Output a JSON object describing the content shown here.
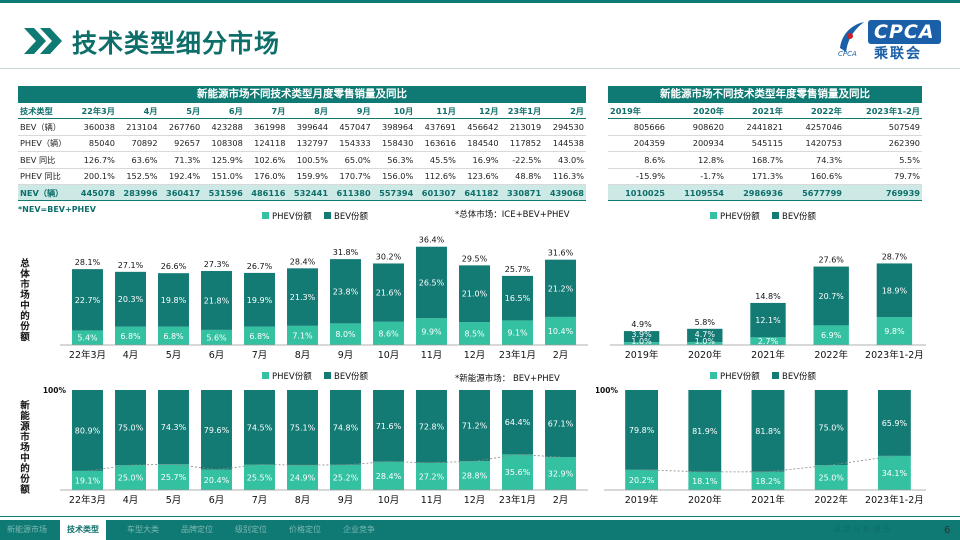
{
  "title": "技术类型细分市场",
  "logo": {
    "text": "CPCA",
    "cn": "乘联会",
    "sub": "CPCA"
  },
  "monthly_table": {
    "title": "新能源市场不同技术类型月度零售销量及同比",
    "header": [
      "技术类型",
      "22年3月",
      "4月",
      "5月",
      "6月",
      "7月",
      "8月",
      "9月",
      "10月",
      "11月",
      "12月",
      "23年1月",
      "2月"
    ],
    "rows": [
      [
        "BEV（辆）",
        "360038",
        "213104",
        "267760",
        "423288",
        "361998",
        "399644",
        "457047",
        "398964",
        "437691",
        "456642",
        "213019",
        "294530"
      ],
      [
        "PHEV（辆）",
        "85040",
        "70892",
        "92657",
        "108308",
        "124118",
        "132797",
        "154333",
        "158430",
        "163616",
        "184540",
        "117852",
        "144538"
      ],
      [
        "BEV 同比",
        "126.7%",
        "63.6%",
        "71.3%",
        "125.9%",
        "102.6%",
        "100.5%",
        "65.0%",
        "56.3%",
        "45.5%",
        "16.9%",
        "-22.5%",
        "43.0%"
      ],
      [
        "PHEV 同比",
        "200.1%",
        "152.5%",
        "192.4%",
        "151.0%",
        "176.0%",
        "159.9%",
        "170.7%",
        "156.0%",
        "112.6%",
        "123.6%",
        "48.8%",
        "116.3%"
      ]
    ],
    "nev_row": [
      "NEV（辆）",
      "445078",
      "283996",
      "360417",
      "531596",
      "486116",
      "532441",
      "611380",
      "557394",
      "601307",
      "641182",
      "330871",
      "439068"
    ]
  },
  "annual_table": {
    "title": "新能源市场不同技术类型年度零售销量及同比",
    "header": [
      "2019年",
      "2020年",
      "2021年",
      "2022年",
      "2023年1-2月"
    ],
    "rows": [
      [
        "805666",
        "908620",
        "2441821",
        "4257046",
        "507549"
      ],
      [
        "204359",
        "200934",
        "545115",
        "1420753",
        "262390"
      ],
      [
        "8.6%",
        "12.8%",
        "168.7%",
        "74.3%",
        "5.5%"
      ],
      [
        "-15.9%",
        "-1.7%",
        "171.3%",
        "160.6%",
        "79.7%"
      ]
    ],
    "nev_row": [
      "1010025",
      "1109554",
      "2986936",
      "5677799",
      "769939"
    ]
  },
  "note": "*NEV=BEV+PHEV",
  "labels": {
    "total_share": "总体市场中的份额",
    "nev_share": "新能源市场中的份额",
    "total_note": "*总体市场：ICE+BEV+PHEV",
    "nev_note": "*新能源市场： BEV+PHEV",
    "hundred": "100%"
  },
  "colors": {
    "phev": "#34c1a2",
    "bev": "#137a74",
    "header": "#0e7a73"
  },
  "chart_data": [
    {
      "type": "bar",
      "id": "monthly_total",
      "stacked": true,
      "categories": [
        "22年3月",
        "4月",
        "5月",
        "6月",
        "7月",
        "8月",
        "9月",
        "10月",
        "11月",
        "12月",
        "23年1月",
        "2月"
      ],
      "series": [
        {
          "name": "PHEV份额",
          "values": [
            5.4,
            6.8,
            6.8,
            5.6,
            6.8,
            7.1,
            8.0,
            8.6,
            9.9,
            8.5,
            9.1,
            10.4
          ]
        },
        {
          "name": "BEV份额",
          "values": [
            22.7,
            20.3,
            19.8,
            21.8,
            19.9,
            21.3,
            23.8,
            21.6,
            26.5,
            21.0,
            16.5,
            21.2
          ]
        }
      ],
      "totals": [
        28.1,
        27.1,
        26.6,
        27.3,
        26.7,
        28.4,
        31.8,
        30.2,
        36.4,
        29.5,
        25.7,
        31.6
      ],
      "legend": "top"
    },
    {
      "type": "bar",
      "id": "annual_total",
      "stacked": true,
      "categories": [
        "2019年",
        "2020年",
        "2021年",
        "2022年",
        "2023年1-2月"
      ],
      "series": [
        {
          "name": "PHEV份额",
          "values": [
            1.0,
            1.0,
            2.7,
            6.9,
            9.8
          ]
        },
        {
          "name": "BEV份额",
          "values": [
            3.9,
            4.7,
            12.1,
            20.7,
            18.9
          ]
        }
      ],
      "totals": [
        4.9,
        5.8,
        14.8,
        27.6,
        28.7
      ],
      "legend": "top"
    },
    {
      "type": "bar",
      "id": "monthly_nev",
      "stacked": true,
      "categories": [
        "22年3月",
        "4月",
        "5月",
        "6月",
        "7月",
        "8月",
        "9月",
        "10月",
        "11月",
        "12月",
        "23年1月",
        "2月"
      ],
      "series": [
        {
          "name": "PHEV份额",
          "values": [
            19.1,
            25.0,
            25.7,
            20.4,
            25.5,
            24.9,
            25.2,
            28.4,
            27.2,
            28.8,
            35.6,
            32.9
          ]
        },
        {
          "name": "BEV份额",
          "values": [
            80.9,
            75.0,
            74.3,
            79.6,
            74.5,
            75.1,
            74.8,
            71.6,
            72.8,
            71.2,
            64.4,
            67.1
          ]
        }
      ],
      "legend": "top"
    },
    {
      "type": "bar",
      "id": "annual_nev",
      "stacked": true,
      "categories": [
        "2019年",
        "2020年",
        "2021年",
        "2022年",
        "2023年1-2月"
      ],
      "series": [
        {
          "name": "PHEV份额",
          "values": [
            20.2,
            18.1,
            18.2,
            25.0,
            34.1
          ]
        },
        {
          "name": "BEV份额",
          "values": [
            79.8,
            81.9,
            81.8,
            75.0,
            65.9
          ]
        }
      ],
      "legend": "top"
    }
  ],
  "footer": {
    "tabs": [
      "新能源市场",
      "技术类型",
      "车型大类",
      "品牌定位",
      "级别定位",
      "价格定位",
      "企业竞争"
    ],
    "active": 1,
    "right": "深度分析报告",
    "page": "6"
  }
}
